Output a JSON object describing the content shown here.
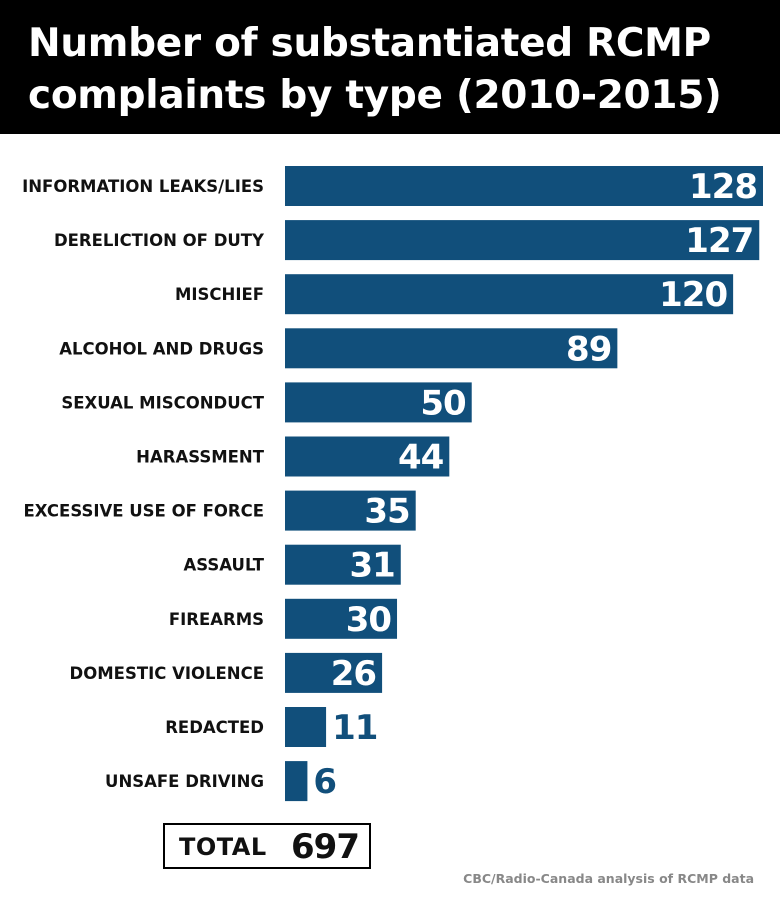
{
  "header": {
    "title_line1": "Number of substantiated RCMP",
    "title_line2": "complaints by type (2010-2015)"
  },
  "chart_data": {
    "type": "bar",
    "orientation": "horizontal",
    "title": "Number of substantiated RCMP complaints by type (2010-2015)",
    "categories": [
      "INFORMATION LEAKS/LIES",
      "DERELICTION OF DUTY",
      "MISCHIEF",
      "ALCOHOL AND DRUGS",
      "SEXUAL MISCONDUCT",
      "HARASSMENT",
      "EXCESSIVE USE OF FORCE",
      "ASSAULT",
      "FIREARMS",
      "DOMESTIC VIOLENCE",
      "REDACTED",
      "UNSAFE DRIVING"
    ],
    "values": [
      128,
      127,
      120,
      89,
      50,
      44,
      35,
      31,
      30,
      26,
      11,
      6
    ],
    "xlim": [
      0,
      128
    ],
    "grid": false,
    "legend": "none",
    "bar_color": "#114f7b"
  },
  "total": {
    "label": "TOTAL",
    "value": "697"
  },
  "source": "CBC/Radio-Canada analysis of RCMP data"
}
